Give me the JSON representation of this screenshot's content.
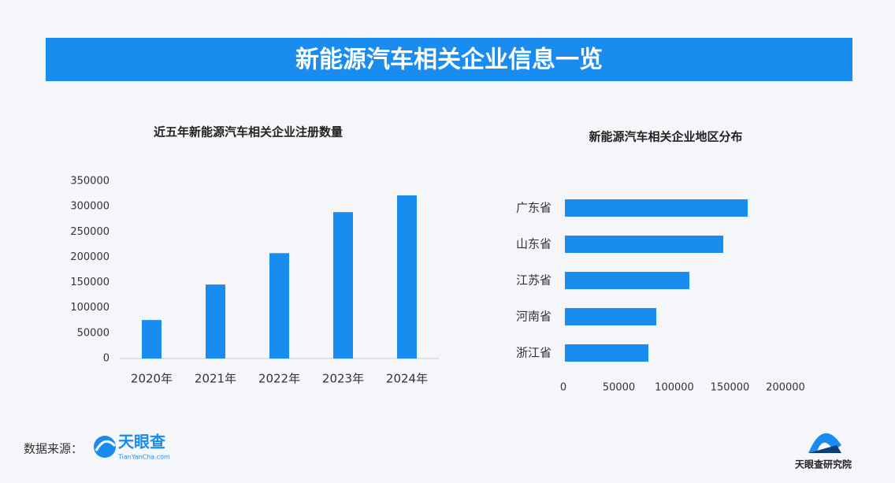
{
  "header": {
    "title": "新能源汽车相关企业信息一览"
  },
  "chart_data": [
    {
      "type": "bar",
      "title": "近五年新能源汽车相关企业注册数量",
      "categories": [
        "2020年",
        "2021年",
        "2022年",
        "2023年",
        "2024年"
      ],
      "values": [
        76000,
        146000,
        208000,
        289000,
        322000
      ],
      "color": "#1a8cf0",
      "ylim": [
        0,
        350000
      ],
      "yticks": [
        0,
        50000,
        100000,
        150000,
        200000,
        250000,
        300000,
        350000
      ]
    },
    {
      "type": "bar",
      "orientation": "horizontal",
      "title": "新能源汽车相关企业地区分布",
      "categories": [
        "广东省",
        "山东省",
        "江苏省",
        "河南省",
        "浙江省"
      ],
      "values": [
        166000,
        144000,
        113500,
        83700,
        76600
      ],
      "color": "#1a8cf0",
      "xlim": [
        0,
        200000
      ],
      "xticks": [
        0,
        50000,
        100000,
        150000,
        200000
      ]
    }
  ],
  "footer": {
    "source_label": "数据来源：",
    "logo_text": "天眼查",
    "logo_url": "TianYanCha.com",
    "brand": "天眼查研究院"
  }
}
